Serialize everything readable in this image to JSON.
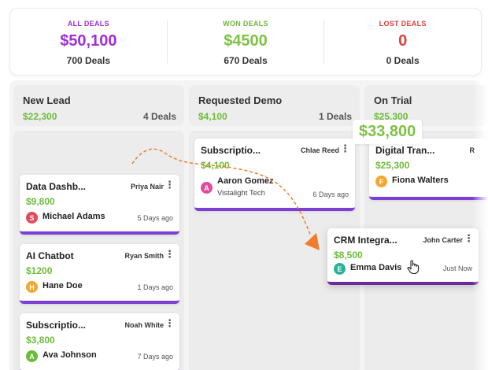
{
  "summary": {
    "all": {
      "label": "ALL DEALS",
      "value": "$50,100",
      "count": "700 Deals",
      "color": "#a02fd6"
    },
    "won": {
      "label": "WON DEALS",
      "value": "$4500",
      "count": "670 Deals",
      "color": "#6dbb3a"
    },
    "lost": {
      "label": "LOST DEALS",
      "value": "0",
      "count": "0 Deals",
      "color": "#e0403a"
    }
  },
  "columns": [
    {
      "title": "New Lead",
      "amount": "$22,300",
      "count": "4 Deals"
    },
    {
      "title": "Requested Demo",
      "amount": "$4,100",
      "count": "1 Deals"
    },
    {
      "title": "On Trial",
      "amount": "$25,300"
    }
  ],
  "cards": {
    "data_dash": {
      "title": "Data Dashb...",
      "owner": "Priya Nair",
      "amount": "$9,800",
      "initial": "S",
      "contact": "Michael Adams",
      "time": "5 Days ago"
    },
    "ai_chatbot": {
      "title": "AI Chatbot",
      "owner": "Ryan Smith",
      "amount": "$1200",
      "initial": "H",
      "contact": "Hane Doe",
      "time": "1 Days ago"
    },
    "subscription_new": {
      "title": "Subscriptio...",
      "owner": "Noah White",
      "amount": "$3,800",
      "initial": "A",
      "contact": "Ava Johnson",
      "time": "7 Days ago"
    },
    "subscription_demo": {
      "title": "Subscriptio...",
      "owner": "Chlae Reed",
      "amount": "$4,100",
      "initial": "A",
      "contact": "Aaron Gomez",
      "company": "Vistalight Tech",
      "time": "6 Days ago"
    },
    "digital": {
      "title": "Digital Tran...",
      "owner": "R",
      "amount": "$25,300",
      "initial": "F",
      "contact": "Fiona Walters"
    },
    "crm": {
      "title": "CRM Integra...",
      "owner": "John Carter",
      "amount": "$8,500",
      "initial": "E",
      "contact": "Emma Davis",
      "time": "Just Now"
    }
  },
  "floating_total": "$33,800",
  "icons": {
    "kebab": "vertical-ellipsis-icon",
    "cursor": "hand-pointer-icon",
    "drag_path": "dashed-arrow-icon"
  },
  "colors": {
    "accent_purple": "#7b3fd6",
    "money_green": "#6dbb3a",
    "drag_orange": "#f07d2c"
  }
}
